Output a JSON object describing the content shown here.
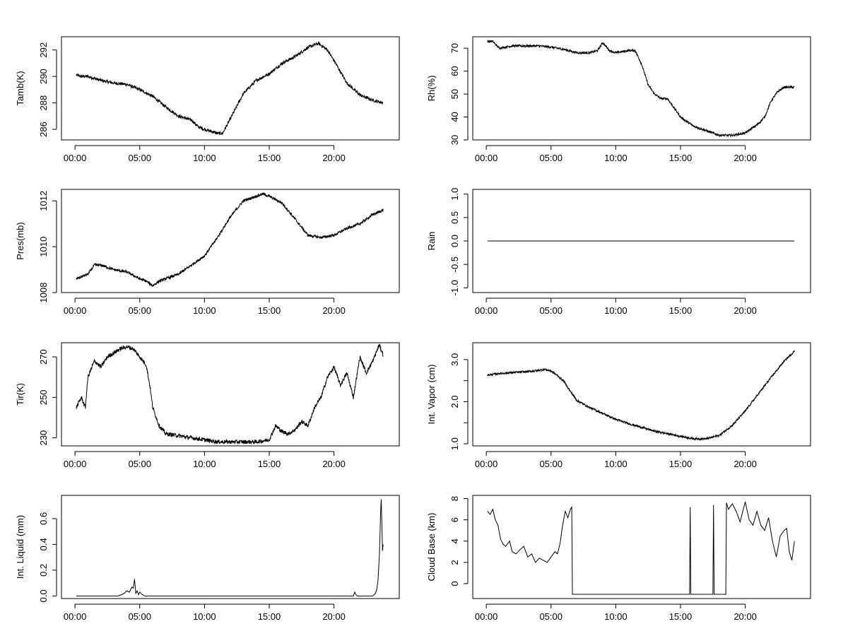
{
  "figure": {
    "background": "#ffffff",
    "line_color": "#000000"
  },
  "chart_data": [
    {
      "id": "tamb",
      "type": "line",
      "ylabel": "Tamb(K)",
      "xlabel": "",
      "title": "",
      "xlim": [
        0,
        24
      ],
      "ylim": [
        285.2,
        293.0
      ],
      "x_ticks": [
        0,
        5,
        10,
        15,
        20
      ],
      "x_tick_labels": [
        "00:00",
        "05:00",
        "10:00",
        "15:00",
        "20:00"
      ],
      "y_ticks": [
        286,
        288,
        290,
        292
      ],
      "y_tick_labels": [
        "286",
        "288",
        "290",
        "292"
      ],
      "noise": 0.12,
      "x": [
        0.1,
        0.5,
        1,
        2,
        3,
        4,
        5,
        6,
        7,
        8,
        9,
        9.5,
        10,
        11,
        11.4,
        12,
        13,
        13.5,
        14,
        15,
        16,
        17,
        18,
        18.8,
        19.5,
        20,
        21,
        22,
        23,
        23.8
      ],
      "values": [
        290.1,
        290.0,
        290.0,
        289.7,
        289.5,
        289.4,
        289.0,
        288.5,
        287.7,
        287.0,
        286.7,
        286.2,
        286.0,
        285.7,
        285.7,
        286.8,
        288.7,
        289.2,
        289.7,
        290.2,
        291.0,
        291.5,
        292.2,
        292.5,
        292.0,
        291.2,
        289.5,
        288.6,
        288.2,
        288.0
      ]
    },
    {
      "id": "rh",
      "type": "line",
      "ylabel": "Rh(%)",
      "xlabel": "",
      "title": "",
      "xlim": [
        0,
        24
      ],
      "ylim": [
        30,
        75
      ],
      "x_ticks": [
        0,
        5,
        10,
        15,
        20
      ],
      "x_tick_labels": [
        "00:00",
        "05:00",
        "10:00",
        "15:00",
        "20:00"
      ],
      "y_ticks": [
        30,
        40,
        50,
        60,
        70
      ],
      "y_tick_labels": [
        "30",
        "40",
        "50",
        "60",
        "70"
      ],
      "noise": 0.5,
      "x": [
        0.1,
        0.5,
        1,
        2,
        3,
        4,
        5,
        6,
        7,
        8,
        8.6,
        9,
        9.5,
        10,
        10.5,
        11,
        11.5,
        12,
        12.5,
        13,
        13.5,
        14,
        14.5,
        15,
        16,
        17,
        18,
        19,
        20,
        21,
        21.5,
        22,
        22.5,
        23,
        23.8
      ],
      "values": [
        73,
        73,
        70,
        71,
        71,
        71,
        70.5,
        69.5,
        68,
        68,
        69,
        72.5,
        69,
        68,
        68.5,
        69,
        69,
        63,
        54,
        50,
        48,
        48,
        44,
        40,
        36,
        34,
        32,
        32,
        33,
        37,
        40,
        47,
        51,
        53,
        53
      ]
    },
    {
      "id": "pres",
      "type": "line",
      "ylabel": "Pres(mb)",
      "xlabel": "",
      "title": "",
      "xlim": [
        0,
        24
      ],
      "ylim": [
        1008,
        1012.5
      ],
      "x_ticks": [
        0,
        5,
        10,
        15,
        20
      ],
      "x_tick_labels": [
        "00:00",
        "05:00",
        "10:00",
        "15:00",
        "20:00"
      ],
      "y_ticks": [
        1008,
        1010,
        1012
      ],
      "y_tick_labels": [
        "1008",
        "1010",
        "1012"
      ],
      "noise": 0.06,
      "x": [
        0.1,
        1,
        1.5,
        2,
        3,
        4,
        5,
        5.5,
        6,
        6.5,
        7,
        8,
        9,
        10,
        11,
        12,
        13,
        14,
        14.5,
        15,
        16,
        17,
        18,
        19,
        20,
        21,
        22,
        23,
        23.8
      ],
      "values": [
        1008.6,
        1008.8,
        1009.2,
        1009.2,
        1009.0,
        1008.9,
        1008.6,
        1008.5,
        1008.3,
        1008.5,
        1008.6,
        1008.8,
        1009.2,
        1009.6,
        1010.4,
        1011.3,
        1012.0,
        1012.2,
        1012.3,
        1012.2,
        1011.9,
        1011.2,
        1010.5,
        1010.4,
        1010.5,
        1010.8,
        1011.0,
        1011.4,
        1011.6
      ]
    },
    {
      "id": "rain",
      "type": "line",
      "ylabel": "Rain",
      "xlabel": "",
      "title": "",
      "xlim": [
        0,
        24
      ],
      "ylim": [
        -1.1,
        1.1
      ],
      "x_ticks": [
        0,
        5,
        10,
        15,
        20
      ],
      "x_tick_labels": [
        "00:00",
        "05:00",
        "10:00",
        "15:00",
        "20:00"
      ],
      "y_ticks": [
        -1.0,
        -0.5,
        0.0,
        0.5,
        1.0
      ],
      "y_tick_labels": [
        "-1.0",
        "-0.5",
        "0.0",
        "0.5",
        "1.0"
      ],
      "noise": 0,
      "x": [
        0.1,
        23.8
      ],
      "values": [
        0,
        0
      ]
    },
    {
      "id": "tir",
      "type": "line",
      "ylabel": "Tir(K)",
      "xlabel": "",
      "title": "",
      "xlim": [
        0,
        24
      ],
      "ylim": [
        226,
        277
      ],
      "x_ticks": [
        0,
        5,
        10,
        15,
        20
      ],
      "x_tick_labels": [
        "00:00",
        "05:00",
        "10:00",
        "15:00",
        "20:00"
      ],
      "y_ticks": [
        230,
        250,
        270
      ],
      "y_tick_labels": [
        "230",
        "250",
        "270"
      ],
      "noise": 1.0,
      "x": [
        0.1,
        0.5,
        0.8,
        1,
        1.5,
        2,
        2.5,
        3,
        3.5,
        4,
        4.5,
        5,
        5.5,
        5.8,
        6,
        6.5,
        7,
        8,
        9,
        10,
        11,
        12,
        13,
        14,
        15,
        15.5,
        16,
        16.5,
        17,
        17.5,
        18,
        18.5,
        19,
        19.5,
        20,
        20.5,
        21,
        21.5,
        22,
        22.5,
        23,
        23.5,
        23.8
      ],
      "values": [
        245,
        250,
        245,
        260,
        268,
        265,
        270,
        272,
        274,
        275,
        274,
        270,
        266,
        255,
        245,
        236,
        232,
        231,
        230,
        229,
        228,
        228,
        228,
        228,
        229,
        236,
        233,
        232,
        234,
        238,
        236,
        245,
        250,
        260,
        265,
        256,
        262,
        250,
        270,
        262,
        268,
        276,
        271
      ]
    },
    {
      "id": "vapor",
      "type": "line",
      "ylabel": "Int. Vapor (cm)",
      "xlabel": "",
      "title": "",
      "xlim": [
        0,
        24
      ],
      "ylim": [
        0.95,
        3.4
      ],
      "x_ticks": [
        0,
        5,
        10,
        15,
        20
      ],
      "x_tick_labels": [
        "00:00",
        "05:00",
        "10:00",
        "15:00",
        "20:00"
      ],
      "y_ticks": [
        1.0,
        1.5,
        2.0,
        2.5,
        3.0
      ],
      "y_tick_labels": [
        "1.0",
        "",
        "2.0",
        "",
        "3.0"
      ],
      "noise": 0.025,
      "x": [
        0.1,
        1,
        2,
        3,
        4,
        4.5,
        5,
        5.5,
        6,
        6.5,
        7,
        8,
        9,
        10,
        11,
        12,
        13,
        14,
        15,
        16,
        17,
        18,
        19,
        20,
        21,
        22,
        23,
        23.8
      ],
      "values": [
        2.63,
        2.67,
        2.69,
        2.71,
        2.74,
        2.77,
        2.73,
        2.62,
        2.48,
        2.24,
        2.03,
        1.86,
        1.72,
        1.58,
        1.48,
        1.39,
        1.3,
        1.24,
        1.18,
        1.12,
        1.12,
        1.2,
        1.44,
        1.78,
        2.18,
        2.58,
        2.96,
        3.2
      ]
    },
    {
      "id": "liquid",
      "type": "line",
      "ylabel": "Int. Liquid (mm)",
      "xlabel": "",
      "title": "",
      "xlim": [
        0,
        24
      ],
      "ylim": [
        -0.02,
        0.78
      ],
      "x_ticks": [
        0,
        5,
        10,
        15,
        20
      ],
      "x_tick_labels": [
        "00:00",
        "05:00",
        "10:00",
        "15:00",
        "20:00"
      ],
      "y_ticks": [
        0.0,
        0.2,
        0.4,
        0.6
      ],
      "y_tick_labels": [
        "0.0",
        "0.2",
        "0.4",
        "0.6"
      ],
      "noise": 0,
      "x": [
        0.1,
        3.3,
        3.6,
        3.8,
        4.0,
        4.2,
        4.4,
        4.5,
        4.6,
        4.7,
        4.8,
        4.9,
        5.0,
        5.2,
        5.4,
        21.5,
        21.6,
        21.7,
        21.8,
        23.0,
        23.2,
        23.3,
        23.4,
        23.5,
        23.55,
        23.6,
        23.65,
        23.7,
        23.75,
        23.8
      ],
      "values": [
        0,
        0,
        0.01,
        0.02,
        0.04,
        0.03,
        0.07,
        0.06,
        0.13,
        0.02,
        0.04,
        0.01,
        0.03,
        0.01,
        0,
        0,
        0.03,
        0.01,
        0,
        0,
        0.02,
        0.05,
        0.12,
        0.3,
        0.45,
        0.65,
        0.75,
        0.55,
        0.35,
        0.4
      ]
    },
    {
      "id": "cloud",
      "type": "line",
      "ylabel": "Cloud Base (km)",
      "xlabel": "",
      "title": "",
      "xlim": [
        0,
        24
      ],
      "ylim": [
        -1.4,
        8.3
      ],
      "x_ticks": [
        0,
        5,
        10,
        15,
        20
      ],
      "x_tick_labels": [
        "00:00",
        "05:00",
        "10:00",
        "15:00",
        "20:00"
      ],
      "y_ticks": [
        0,
        2,
        4,
        6,
        8
      ],
      "y_tick_labels": [
        "0",
        "2",
        "4",
        "6",
        "8"
      ],
      "noise": 0,
      "x": [
        0.1,
        0.3,
        0.5,
        0.7,
        0.9,
        1.1,
        1.3,
        1.5,
        1.8,
        2.0,
        2.3,
        2.6,
        2.9,
        3.2,
        3.5,
        3.8,
        4.1,
        4.4,
        4.7,
        5.0,
        5.3,
        5.5,
        5.7,
        5.9,
        6.1,
        6.3,
        6.5,
        6.6,
        6.65,
        15.7,
        15.75,
        15.8,
        17.5,
        17.55,
        17.6,
        18.5,
        18.55,
        18.7,
        19.0,
        19.3,
        19.6,
        20.0,
        20.3,
        20.6,
        20.9,
        21.2,
        21.5,
        21.8,
        22.1,
        22.4,
        22.7,
        23.0,
        23.2,
        23.4,
        23.6,
        23.8
      ],
      "values": [
        6.8,
        6.5,
        7.0,
        6.0,
        5.5,
        4.2,
        3.7,
        3.5,
        4.0,
        3.0,
        2.8,
        3.2,
        3.5,
        2.5,
        2.8,
        2.0,
        2.4,
        2.2,
        2.0,
        2.5,
        3.0,
        2.8,
        3.8,
        5.5,
        6.8,
        6.2,
        7.0,
        7.2,
        -1,
        -1,
        7.2,
        -1,
        -1,
        7.4,
        -1,
        -1,
        7.6,
        7.0,
        7.5,
        6.8,
        5.8,
        7.7,
        6.0,
        5.5,
        6.8,
        5.5,
        5.0,
        6.2,
        4.0,
        2.5,
        4.5,
        5.0,
        5.2,
        3.0,
        2.2,
        4.0
      ]
    }
  ]
}
